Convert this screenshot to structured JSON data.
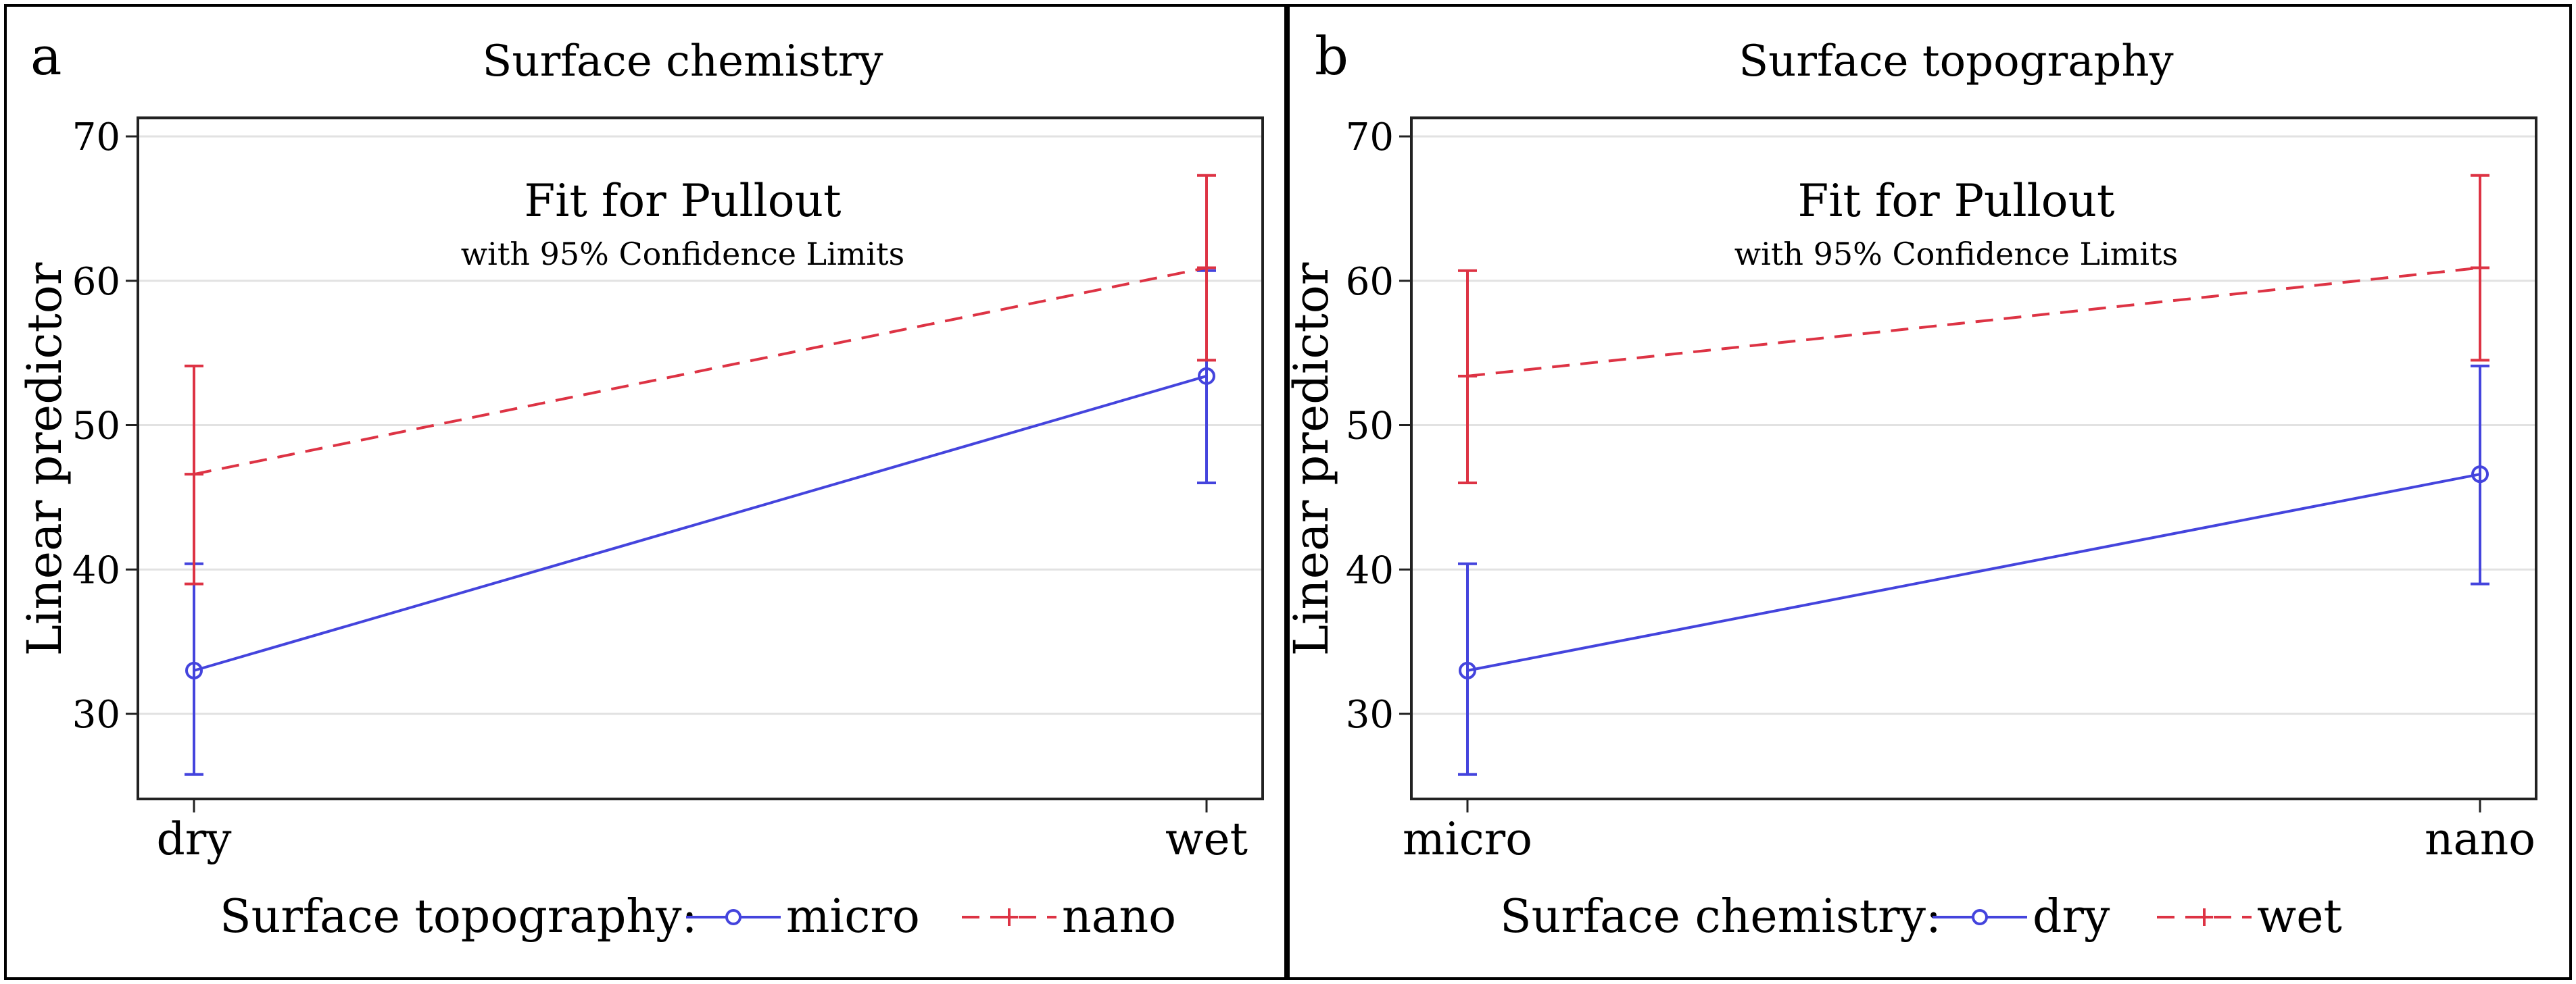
{
  "chart_data": [
    {
      "type": "line",
      "panel_label": "a",
      "title": "Surface chemistry",
      "inner_title": "Fit for Pullout",
      "inner_subtitle": "with 95% Confidence Limits",
      "xlabel": "",
      "ylabel": "Linear predictor",
      "categories": [
        "dry",
        "wet"
      ],
      "yticks": [
        30,
        40,
        50,
        60,
        70
      ],
      "ylim": [
        24,
        71.5
      ],
      "grid": true,
      "legend_title": "Surface topography:",
      "legend_position": "bottom",
      "series": [
        {
          "name": "micro",
          "color": "#4444dd",
          "style": "solid",
          "marker": "circle",
          "values": [
            33.0,
            53.4
          ],
          "lower": [
            25.8,
            46.0
          ],
          "upper": [
            40.4,
            60.7
          ]
        },
        {
          "name": "nano",
          "color": "#dd3344",
          "style": "dashed",
          "marker": "plus",
          "values": [
            46.6,
            60.9
          ],
          "lower": [
            39.0,
            54.5
          ],
          "upper": [
            54.1,
            67.3
          ]
        }
      ]
    },
    {
      "type": "line",
      "panel_label": "b",
      "title": "Surface topography",
      "inner_title": "Fit for Pullout",
      "inner_subtitle": "with 95% Confidence Limits",
      "xlabel": "",
      "ylabel": "Linear predictor",
      "categories": [
        "micro",
        "nano"
      ],
      "yticks": [
        30,
        40,
        50,
        60,
        70
      ],
      "ylim": [
        24,
        71.5
      ],
      "grid": true,
      "legend_title": "Surface chemistry:",
      "legend_position": "bottom",
      "series": [
        {
          "name": "dry",
          "color": "#4444dd",
          "style": "solid",
          "marker": "circle",
          "values": [
            33.0,
            46.6
          ],
          "lower": [
            25.8,
            39.0
          ],
          "upper": [
            40.4,
            54.1
          ]
        },
        {
          "name": "wet",
          "color": "#dd3344",
          "style": "dashed",
          "marker": "plus",
          "values": [
            53.4,
            60.9
          ],
          "lower": [
            46.0,
            54.5
          ],
          "upper": [
            60.7,
            67.3
          ]
        }
      ]
    }
  ]
}
